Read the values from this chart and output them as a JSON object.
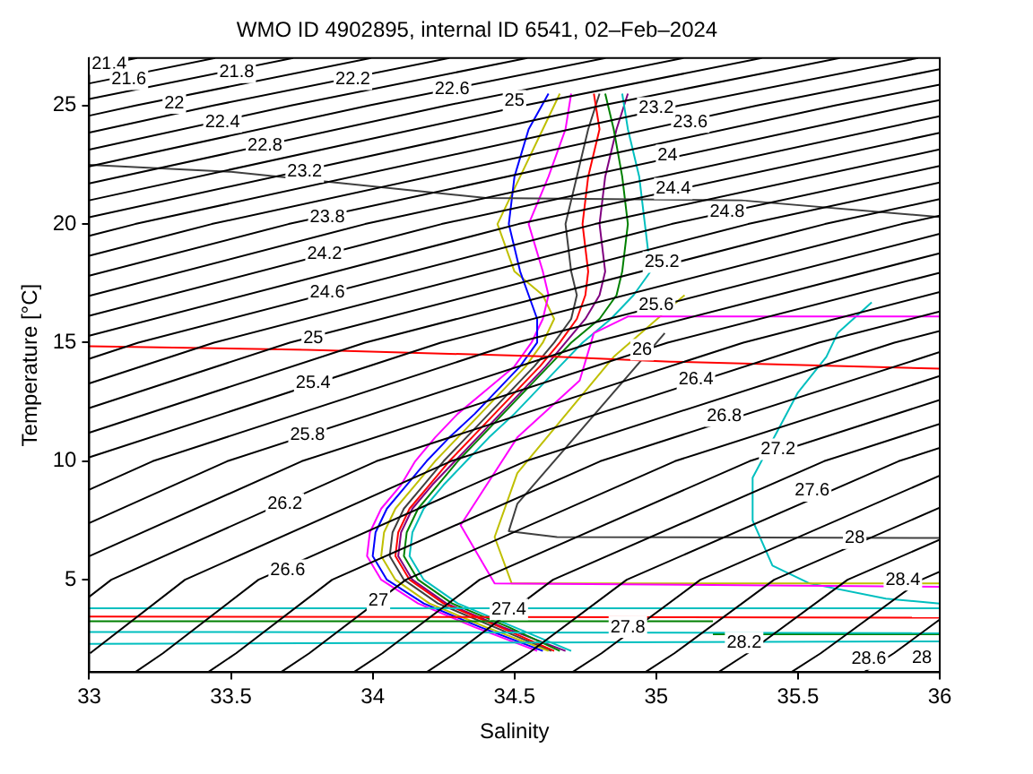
{
  "chart_data": {
    "type": "line",
    "title": "WMO ID 4902895, internal ID 6541, 02–Feb–2024",
    "xlabel": "Salinity",
    "ylabel": "Temperature [°C]",
    "xlim": [
      33,
      36
    ],
    "ylim": [
      1.1,
      27
    ],
    "xticks": [
      33,
      33.5,
      34,
      34.5,
      35,
      35.5,
      36
    ],
    "yticks": [
      5,
      10,
      15,
      20,
      25
    ],
    "grid": false,
    "legend": false,
    "marker": "none",
    "line_style": "solid",
    "series": [
      {
        "color": "#000000",
        "x": [
          35.733,
          35.838,
          36
        ],
        "values": [
          1.1,
          1.9,
          3.32
        ]
      },
      {
        "color": "#000000",
        "x": [
          35.476,
          35.58,
          35.935,
          36
        ],
        "values": [
          1.1,
          1.9,
          5,
          5.34
        ]
      },
      {
        "color": "#000000",
        "x": [
          35.219,
          35.322,
          35.675,
          36
        ],
        "values": [
          1.1,
          1.9,
          5,
          6.69
        ]
      },
      {
        "color": "#000000",
        "x": [
          34.961,
          35.064,
          35.416,
          36
        ],
        "values": [
          1.1,
          1.9,
          5,
          8.04
        ]
      },
      {
        "color": "#000000",
        "x": [
          34.704,
          34.807,
          35.156,
          36
        ],
        "values": [
          1.1,
          1.9,
          5,
          9.39
        ]
      },
      {
        "color": "#000000",
        "x": [
          34.447,
          34.549,
          34.896,
          35.855,
          36
        ],
        "values": [
          1.1,
          1.9,
          5,
          10,
          10.56
        ]
      },
      {
        "color": "#000000",
        "x": [
          34.19,
          34.291,
          34.636,
          35.592,
          36
        ],
        "values": [
          1.1,
          1.9,
          5,
          10,
          11.57
        ]
      },
      {
        "color": "#000000",
        "x": [
          33.933,
          34.034,
          34.377,
          35.329,
          36
        ],
        "values": [
          1.1,
          1.9,
          5,
          10,
          12.58
        ]
      },
      {
        "color": "#000000",
        "x": [
          33.676,
          33.776,
          34.117,
          35.066,
          36
        ],
        "values": [
          1.1,
          1.9,
          5,
          10,
          13.59
        ]
      },
      {
        "color": "#000000",
        "x": [
          33.419,
          33.518,
          33.857,
          34.803,
          36
        ],
        "values": [
          1.1,
          1.9,
          5,
          10,
          14.6
        ]
      },
      {
        "color": "#000000",
        "x": [
          33.162,
          33.26,
          33.597,
          34.539,
          35.84,
          36
        ],
        "values": [
          1.1,
          1.9,
          5,
          10,
          15,
          15.49
        ]
      },
      {
        "color": "#000000",
        "x": [
          33.003,
          33.338,
          34.276,
          35.573,
          36
        ],
        "values": [
          1.9,
          5,
          10,
          15,
          16.31
        ]
      },
      {
        "color": "#000000",
        "x": [
          33,
          33.078,
          34.013,
          35.307,
          36
        ],
        "values": [
          4.28,
          5,
          10,
          15,
          17.13
        ]
      },
      {
        "color": "#000000",
        "x": [
          33,
          33.75,
          35.04,
          36
        ],
        "values": [
          5.99,
          10,
          15,
          17.95
        ]
      },
      {
        "color": "#000000",
        "x": [
          33,
          33.487,
          34.773,
          36
        ],
        "values": [
          7.39,
          10,
          15,
          18.77
        ]
      },
      {
        "color": "#000000",
        "x": [
          33,
          33.224,
          34.507,
          36
        ],
        "values": [
          8.8,
          10,
          15,
          19.59
        ]
      },
      {
        "color": "#000000",
        "x": [
          33,
          34.24,
          35.865,
          36
        ],
        "values": [
          10.16,
          15,
          20,
          20.35
        ]
      },
      {
        "color": "#000000",
        "x": [
          33,
          33.973,
          35.595,
          36
        ],
        "values": [
          11.2,
          15,
          20,
          21.05
        ]
      },
      {
        "color": "#000000",
        "x": [
          33,
          33.707,
          35.324,
          36
        ],
        "values": [
          12.24,
          15,
          20,
          21.75
        ]
      },
      {
        "color": "#000000",
        "x": [
          33,
          33.44,
          35.054,
          36
        ],
        "values": [
          13.28,
          15,
          20,
          22.45
        ]
      },
      {
        "color": "#000000",
        "x": [
          33,
          33.173,
          34.784,
          36
        ],
        "values": [
          14.32,
          15,
          20,
          23.15
        ]
      },
      {
        "color": "#000000",
        "x": [
          33,
          34.514,
          36
        ],
        "values": [
          15.29,
          20,
          23.85
        ]
      },
      {
        "color": "#000000",
        "x": [
          33,
          34.243,
          36
        ],
        "values": [
          16.13,
          20,
          24.55
        ]
      },
      {
        "color": "#000000",
        "x": [
          33,
          33.973,
          35.904,
          36
        ],
        "values": [
          16.97,
          20,
          25,
          25.23
        ]
      },
      {
        "color": "#000000",
        "x": [
          33,
          33.703,
          35.63,
          36
        ],
        "values": [
          17.82,
          20,
          25,
          25.88
        ]
      },
      {
        "color": "#000000",
        "x": [
          33,
          33.432,
          35.356,
          36
        ],
        "values": [
          18.66,
          20,
          25,
          26.53
        ]
      },
      {
        "color": "#000000",
        "x": [
          33,
          33.162,
          35.082,
          35.923
        ],
        "values": [
          19.5,
          20,
          25,
          27
        ]
      },
      {
        "color": "#000000",
        "x": [
          33,
          34.808,
          35.647
        ],
        "values": [
          20.29,
          25,
          27
        ]
      },
      {
        "color": "#000000",
        "x": [
          33,
          34.534,
          35.372
        ],
        "values": [
          21,
          25,
          27
        ]
      },
      {
        "color": "#000000",
        "x": [
          33,
          34.26,
          35.096
        ],
        "values": [
          21.71,
          25,
          27
        ]
      },
      {
        "color": "#000000",
        "x": [
          33,
          33.986,
          34.821
        ],
        "values": [
          22.43,
          25,
          27
        ]
      },
      {
        "color": "#000000",
        "x": [
          33,
          33.712,
          34.545
        ],
        "values": [
          23.14,
          25,
          27
        ]
      },
      {
        "color": "#000000",
        "x": [
          33,
          33.438,
          34.27
        ],
        "values": [
          23.86,
          25,
          27
        ]
      },
      {
        "color": "#000000",
        "x": [
          33,
          33.164,
          33.994
        ],
        "values": [
          24.57,
          25,
          27
        ]
      },
      {
        "color": "#000000",
        "x": [
          33,
          33.719
        ],
        "values": [
          25.27,
          27
        ]
      },
      {
        "color": "#000000",
        "x": [
          33,
          33.444
        ],
        "values": [
          25.93,
          27
        ]
      },
      {
        "color": "#000000",
        "x": [
          33,
          33.168
        ],
        "values": [
          26.59,
          27
        ]
      },
      {
        "color": "#404040",
        "x": [
          33,
          33.5,
          34.4,
          35.3,
          36
        ],
        "values": [
          22.5,
          22.2,
          21.1,
          21,
          20.3
        ]
      },
      {
        "color": "#ff0000",
        "x": [
          33,
          33.77,
          34.65,
          35.05,
          36
        ],
        "values": [
          14.85,
          14.7,
          14.4,
          14.2,
          13.9
        ]
      },
      {
        "color": "#ff00ff",
        "x": [
          36,
          34.9,
          34.78,
          34.73,
          34.51,
          34.31,
          34.43,
          36
        ],
        "values": [
          16.1,
          16.1,
          15.4,
          13.4,
          11,
          7.3,
          4.85,
          4.7
        ]
      },
      {
        "color": "#bfbf00",
        "x": [
          35.1,
          34.85,
          34.51,
          34.43,
          34.49,
          36
        ],
        "values": [
          17,
          14.4,
          9.5,
          6.8,
          4.85,
          4.85
        ]
      },
      {
        "color": "#404040",
        "x": [
          35.03,
          34.51,
          34.48,
          34.65,
          36,
          36
        ],
        "values": [
          15.4,
          8.2,
          7.05,
          6.8,
          6.76,
          9
        ]
      },
      {
        "color": "#00bfbf",
        "x": [
          35.76,
          35.64,
          35.6,
          35.5,
          35.34,
          35.34,
          35.41,
          35.54,
          35.81,
          36
        ],
        "values": [
          16.7,
          15.4,
          14.4,
          12.9,
          9.3,
          7.5,
          5.6,
          4.85,
          4.2,
          4
        ]
      },
      {
        "color": "#00bfbf",
        "x": [
          33,
          36
        ],
        "values": [
          3.8,
          3.8
        ]
      },
      {
        "color": "#ff0000",
        "x": [
          33,
          36
        ],
        "values": [
          3.45,
          3.4
        ]
      },
      {
        "color": "#008000",
        "x": [
          33,
          35.2
        ],
        "values": [
          3.25,
          3.25
        ]
      },
      {
        "color": "#00bfbf",
        "x": [
          33,
          36
        ],
        "values": [
          2.8,
          2.75
        ]
      },
      {
        "color": "#00bfbf",
        "x": [
          33,
          36
        ],
        "values": [
          2.3,
          2.4
        ]
      },
      {
        "color": "#008000",
        "x": [
          35.2,
          36
        ],
        "values": [
          2.7,
          2.7
        ]
      },
      {
        "color": "#0000ff",
        "x": [
          34.6,
          34.38,
          34.18,
          34.05,
          34,
          34.01,
          34.05,
          34.12,
          34.19,
          34.27,
          34.36,
          34.44,
          34.52,
          34.58,
          34.58,
          34.55,
          34.52,
          34.48,
          34.5,
          34.55,
          34.62
        ],
        "values": [
          2,
          3,
          4,
          5,
          6,
          7,
          8,
          9,
          10,
          11,
          12,
          13,
          14,
          15,
          16,
          17,
          18,
          20,
          22,
          24,
          25.5
        ]
      },
      {
        "color": "#ff0000",
        "x": [
          34.64,
          34.45,
          34.25,
          34.13,
          34.08,
          34.09,
          34.13,
          34.2,
          34.27,
          34.35,
          34.43,
          34.51,
          34.59,
          34.66,
          34.72,
          34.75,
          34.76,
          34.74,
          34.76,
          34.8,
          34.78
        ],
        "values": [
          2,
          3,
          4,
          5,
          6,
          7,
          8,
          9,
          10,
          11,
          12,
          13,
          14,
          15,
          16,
          17,
          18,
          20,
          22,
          24,
          25.5
        ]
      },
      {
        "color": "#008000",
        "x": [
          34.66,
          34.48,
          34.28,
          34.16,
          34.11,
          34.12,
          34.16,
          34.23,
          34.3,
          34.38,
          34.46,
          34.54,
          34.62,
          34.7,
          34.8,
          34.86,
          34.88,
          34.9,
          34.88,
          34.85,
          34.82
        ],
        "values": [
          2,
          3,
          4,
          5,
          6,
          7,
          8,
          9,
          10,
          11,
          12,
          13,
          14,
          15,
          16,
          17,
          18,
          20,
          22,
          24,
          25.5
        ]
      },
      {
        "color": "#ff00ff",
        "x": [
          34.58,
          34.36,
          34.16,
          34.03,
          33.98,
          33.99,
          34.03,
          34.1,
          34.15,
          34.22,
          34.3,
          34.4,
          34.5,
          34.56,
          34.6,
          34.62,
          34.6,
          34.55,
          34.62,
          34.68,
          34.7
        ],
        "values": [
          2,
          3,
          4,
          5,
          6,
          7,
          8,
          9,
          10,
          11,
          12,
          13,
          14,
          15,
          16,
          17,
          18,
          20,
          22,
          24,
          25.5
        ]
      },
      {
        "color": "#00bfbf",
        "x": [
          34.7,
          34.5,
          34.3,
          34.18,
          34.13,
          34.14,
          34.18,
          34.25,
          34.33,
          34.41,
          34.5,
          34.58,
          34.66,
          34.74,
          34.84,
          34.92,
          34.98,
          34.96,
          34.94,
          34.9,
          34.88
        ],
        "values": [
          2,
          3,
          4,
          5,
          6,
          7,
          8,
          9,
          10,
          11,
          12,
          13,
          14,
          15,
          16,
          17,
          18,
          20,
          22,
          24,
          25.5
        ]
      },
      {
        "color": "#bfbf00",
        "x": [
          34.62,
          34.4,
          34.2,
          34.08,
          34.03,
          34.04,
          34.08,
          34.15,
          34.22,
          34.3,
          34.38,
          34.46,
          34.54,
          34.6,
          34.64,
          34.6,
          34.5,
          34.44,
          34.52,
          34.6,
          34.66
        ],
        "values": [
          2,
          3,
          4,
          5,
          6,
          7,
          8,
          9,
          10,
          11,
          12,
          13,
          14,
          15,
          16,
          17,
          18,
          20,
          22,
          24,
          25.5
        ]
      },
      {
        "color": "#800080",
        "x": [
          34.68,
          34.46,
          34.26,
          34.14,
          34.09,
          34.1,
          34.14,
          34.21,
          34.29,
          34.37,
          34.45,
          34.53,
          34.61,
          34.68,
          34.75,
          34.8,
          34.82,
          34.8,
          34.82,
          34.86,
          34.9
        ],
        "values": [
          2,
          3,
          4,
          5,
          6,
          7,
          8,
          9,
          10,
          11,
          12,
          13,
          14,
          15,
          16,
          17,
          18,
          20,
          22,
          24,
          25.5
        ]
      },
      {
        "color": "#404040",
        "x": [
          34.63,
          34.43,
          34.23,
          34.11,
          34.06,
          34.07,
          34.11,
          34.18,
          34.25,
          34.33,
          34.41,
          34.49,
          34.57,
          34.64,
          34.7,
          34.72,
          34.7,
          34.68,
          34.72,
          34.76,
          34.8
        ],
        "values": [
          2,
          3,
          4,
          5,
          6,
          7,
          8,
          9,
          10,
          11,
          12,
          13,
          14,
          15,
          16,
          17,
          18,
          20,
          22,
          24,
          25.5
        ]
      }
    ],
    "annotations": [
      {
        "text": "21.4",
        "x": 33.07,
        "y": 26.75
      },
      {
        "text": "21.6",
        "x": 33.14,
        "y": 26.1
      },
      {
        "text": "21.8",
        "x": 33.52,
        "y": 26.4
      },
      {
        "text": "22",
        "x": 33.3,
        "y": 25.1
      },
      {
        "text": "22.2",
        "x": 33.93,
        "y": 26.1
      },
      {
        "text": "22.4",
        "x": 33.47,
        "y": 24.3
      },
      {
        "text": "22.6",
        "x": 34.28,
        "y": 25.7
      },
      {
        "text": "22.8",
        "x": 33.62,
        "y": 23.3
      },
      {
        "text": "23.2",
        "x": 33.76,
        "y": 22.2
      },
      {
        "text": "23.8",
        "x": 33.84,
        "y": 20.3
      },
      {
        "text": "24.2",
        "x": 33.83,
        "y": 18.75
      },
      {
        "text": "24.6",
        "x": 33.84,
        "y": 17.1
      },
      {
        "text": "25",
        "x": 33.79,
        "y": 15.2
      },
      {
        "text": "25.4",
        "x": 33.79,
        "y": 13.3
      },
      {
        "text": "25.8",
        "x": 33.77,
        "y": 11.1
      },
      {
        "text": "26.2",
        "x": 33.69,
        "y": 8.2
      },
      {
        "text": "26.6",
        "x": 33.7,
        "y": 5.4
      },
      {
        "text": "27",
        "x": 34.02,
        "y": 4.1
      },
      {
        "text": "27.4",
        "x": 34.48,
        "y": 3.75
      },
      {
        "text": "27.8",
        "x": 34.9,
        "y": 3
      },
      {
        "text": "28.2",
        "x": 35.31,
        "y": 2.35
      },
      {
        "text": "28.6",
        "x": 35.75,
        "y": 1.65
      },
      "28",
      {
        "text": "28.4",
        "x": 35.87,
        "y": 5
      },
      {
        "text": "28",
        "x": 35.7,
        "y": 6.75
      },
      {
        "text": "27.6",
        "x": 35.55,
        "y": 8.75
      },
      {
        "text": "27.2",
        "x": 35.43,
        "y": 10.5
      },
      {
        "text": "26.8",
        "x": 35.24,
        "y": 11.9
      },
      {
        "text": "26.4",
        "x": 35.14,
        "y": 13.45
      },
      {
        "text": "26",
        "x": 34.95,
        "y": 14.7
      },
      {
        "text": "25.6",
        "x": 35,
        "y": 16.6
      },
      {
        "text": "25.2",
        "x": 35.02,
        "y": 18.4
      },
      {
        "text": "24.8",
        "x": 35.25,
        "y": 20.5
      },
      {
        "text": "24.4",
        "x": 35.06,
        "y": 21.5
      },
      {
        "text": "24",
        "x": 35.04,
        "y": 22.9
      },
      {
        "text": "23.6",
        "x": 35.12,
        "y": 24.3
      },
      {
        "text": "23.2",
        "x": 35,
        "y": 24.9
      },
      {
        "text": "25",
        "x": 34.5,
        "y": 25.2
      }
    ]
  }
}
